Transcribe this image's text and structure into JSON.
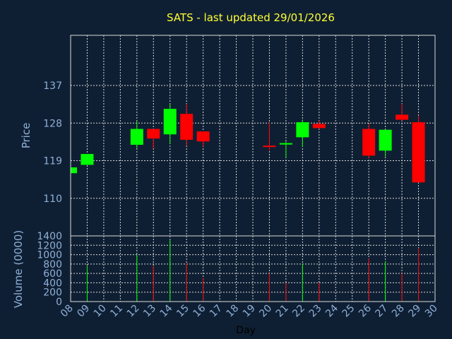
{
  "chart_data": {
    "type": "candlestick",
    "title": "SATS - last updated 29/01/2026",
    "xlabel": "Day",
    "price_ylabel": "Price",
    "volume_ylabel": "Volume (0000)",
    "x_ticks": [
      "08",
      "09",
      "10",
      "11",
      "12",
      "13",
      "14",
      "15",
      "16",
      "17",
      "18",
      "19",
      "20",
      "21",
      "22",
      "23",
      "24",
      "25",
      "26",
      "27",
      "28",
      "29",
      "30"
    ],
    "price_ticks": [
      110,
      119,
      128,
      137
    ],
    "price_ylim": [
      101,
      149
    ],
    "volume_ticks": [
      0,
      200,
      400,
      600,
      800,
      1000,
      1200,
      1400
    ],
    "volume_ylim": [
      0,
      1400
    ],
    "grid": true,
    "up_color": "#00ff00",
    "down_color": "#ff0000",
    "candles": [
      {
        "day": "08",
        "open": 116.0,
        "close": 117.4,
        "high": 117.4,
        "low": 116.0
      },
      {
        "day": "09",
        "open": 118.0,
        "close": 120.6,
        "high": 120.6,
        "low": 118.0
      },
      {
        "day": "12",
        "open": 122.8,
        "close": 126.6,
        "high": 128.4,
        "low": 122.0
      },
      {
        "day": "13",
        "open": 126.6,
        "close": 124.3,
        "high": 126.6,
        "low": 121.9
      },
      {
        "day": "14",
        "open": 125.3,
        "close": 131.4,
        "high": 132.6,
        "low": 123.1
      },
      {
        "day": "15",
        "open": 130.2,
        "close": 124.0,
        "high": 132.6,
        "low": 122.6
      },
      {
        "day": "16",
        "open": 126.0,
        "close": 123.6,
        "high": 126.0,
        "low": 122.4
      },
      {
        "day": "20",
        "open": 122.6,
        "close": 122.4,
        "high": 128.2,
        "low": 121.5
      },
      {
        "day": "21",
        "open": 123.0,
        "close": 123.2,
        "high": 123.6,
        "low": 119.8
      },
      {
        "day": "22",
        "open": 124.6,
        "close": 128.2,
        "high": 128.8,
        "low": 122.4
      },
      {
        "day": "23",
        "open": 127.8,
        "close": 126.8,
        "high": 128.6,
        "low": 126.6
      },
      {
        "day": "26",
        "open": 126.6,
        "close": 120.2,
        "high": 127.8,
        "low": 119.6
      },
      {
        "day": "27",
        "open": 121.4,
        "close": 126.4,
        "high": 126.4,
        "low": 120.0
      },
      {
        "day": "28",
        "open": 130.0,
        "close": 128.8,
        "high": 132.6,
        "low": 128.6
      },
      {
        "day": "29",
        "open": 128.2,
        "close": 113.8,
        "high": 129.8,
        "low": 113.8
      }
    ],
    "volumes": [
      {
        "day": "09",
        "value": 760,
        "dir": "up"
      },
      {
        "day": "12",
        "value": 1000,
        "dir": "up"
      },
      {
        "day": "13",
        "value": 760,
        "dir": "down"
      },
      {
        "day": "14",
        "value": 1320,
        "dir": "up"
      },
      {
        "day": "15",
        "value": 820,
        "dir": "down"
      },
      {
        "day": "16",
        "value": 500,
        "dir": "down"
      },
      {
        "day": "20",
        "value": 600,
        "dir": "down"
      },
      {
        "day": "21",
        "value": 400,
        "dir": "down"
      },
      {
        "day": "22",
        "value": 800,
        "dir": "up"
      },
      {
        "day": "23",
        "value": 400,
        "dir": "down"
      },
      {
        "day": "26",
        "value": 920,
        "dir": "down"
      },
      {
        "day": "27",
        "value": 860,
        "dir": "up"
      },
      {
        "day": "28",
        "value": 600,
        "dir": "down"
      },
      {
        "day": "29",
        "value": 1140,
        "dir": "down"
      }
    ]
  }
}
